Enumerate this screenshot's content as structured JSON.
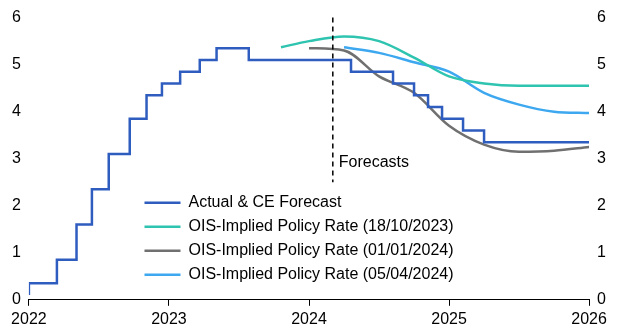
{
  "chart_data": {
    "type": "line",
    "xlim": [
      2022,
      2026
    ],
    "xticks": [
      2022,
      2023,
      2024,
      2025,
      2026
    ],
    "ylim": [
      0,
      6
    ],
    "yticks": [
      0,
      1,
      2,
      3,
      4,
      5,
      6
    ],
    "y2lim": [
      0,
      6
    ],
    "y2ticks": [
      0,
      1,
      2,
      3,
      4,
      5,
      6
    ],
    "grid": false,
    "legend": "lower center",
    "annotations": [
      {
        "text": "Forecasts",
        "x": 2024.17,
        "y": 2.5
      }
    ],
    "series": [
      {
        "name": "Actual & CE Forecast",
        "color": "#2f5cbf",
        "line_style": "step",
        "x": [
          2022,
          2022.2,
          2022.34,
          2022.45,
          2022.57,
          2022.72,
          2022.84,
          2022.95,
          2023.08,
          2023.22,
          2023.34,
          2023.57,
          2024.3,
          2024.6,
          2024.75,
          2024.85,
          2024.95,
          2025.1,
          2025.25,
          2025.45,
          2026
        ],
        "values": [
          0.1,
          0.35,
          0.85,
          1.6,
          2.35,
          3.1,
          3.85,
          4.35,
          4.6,
          4.85,
          5.1,
          5.35,
          5.1,
          4.85,
          4.6,
          4.35,
          4.1,
          3.85,
          3.6,
          3.35,
          3.35
        ]
      },
      {
        "name": "OIS-Implied Policy Rate (18/10/2023)",
        "color": "#2ec4b0",
        "line_style": "solid",
        "x": [
          2023.8,
          2024.0,
          2024.25,
          2024.5,
          2024.75,
          2025.0,
          2025.25,
          2025.5,
          2025.75,
          2026
        ],
        "values": [
          5.37,
          5.5,
          5.6,
          5.5,
          5.15,
          4.75,
          4.6,
          4.55,
          4.55,
          4.55
        ]
      },
      {
        "name": "OIS-Implied Policy Rate (01/01/2024)",
        "color": "#707070",
        "line_style": "solid",
        "x": [
          2024.0,
          2024.25,
          2024.5,
          2024.75,
          2025.0,
          2025.25,
          2025.5,
          2025.75,
          2026
        ],
        "values": [
          5.35,
          5.3,
          4.75,
          4.4,
          3.7,
          3.3,
          3.15,
          3.17,
          3.25
        ]
      },
      {
        "name": "OIS-Implied Policy Rate (05/04/2024)",
        "color": "#3da8f0",
        "line_style": "solid",
        "x": [
          2024.25,
          2024.5,
          2024.75,
          2025.0,
          2025.25,
          2025.5,
          2025.75,
          2026
        ],
        "values": [
          5.37,
          5.25,
          5.05,
          4.85,
          4.4,
          4.15,
          4.0,
          3.97
        ]
      }
    ]
  }
}
